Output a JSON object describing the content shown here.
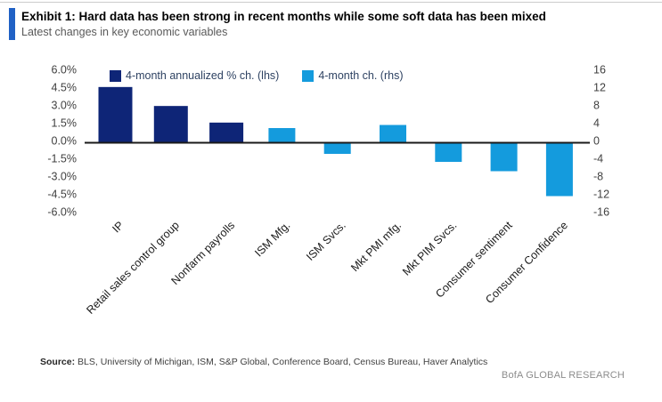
{
  "header": {
    "exhibit_title": "Exhibit 1: Hard data has been strong in recent months while some soft data has been mixed",
    "subtitle": "Latest changes in key economic variables"
  },
  "legend": [
    {
      "label": "4-month annualized % ch. (lhs)",
      "color": "#0e2577"
    },
    {
      "label": "4-month ch. (rhs)",
      "color": "#149bdd"
    }
  ],
  "chart_data": {
    "type": "bar",
    "title": "Exhibit 1: Hard data has been strong in recent months while some soft data has been mixed",
    "subtitle": "Latest changes in key economic variables",
    "legend_position": "top",
    "grid": false,
    "categories": [
      "IP",
      "Retail sales control group",
      "Nonfarm payrolls",
      "ISM Mfg.",
      "ISM Svcs.",
      "Mkt PMI mfg.",
      "Mkt PIM Svcs.",
      "Consumer sentiment",
      "Consumer Confidence"
    ],
    "series": [
      {
        "name": "4-month annualized % ch. (lhs)",
        "axis": "left",
        "color": "#0e2577",
        "values": [
          4.7,
          3.1,
          1.7,
          null,
          null,
          null,
          null,
          null,
          null
        ]
      },
      {
        "name": "4-month ch. (rhs)",
        "axis": "right",
        "color": "#149bdd",
        "values": [
          null,
          null,
          null,
          3.3,
          -2.5,
          4.0,
          -4.3,
          -6.4,
          -12.0
        ]
      }
    ],
    "left_axis": {
      "label": "4-month annualized % ch.",
      "min": -6,
      "max": 6,
      "ticks": [
        "6.0%",
        "4.5%",
        "3.0%",
        "1.5%",
        "0.0%",
        "-1.5%",
        "-3.0%",
        "-4.5%",
        "-6.0%"
      ]
    },
    "right_axis": {
      "label": "4-month ch.",
      "min": -16,
      "max": 16,
      "ticks": [
        "16",
        "12",
        "8",
        "4",
        "0",
        "-4",
        "-8",
        "-12",
        "-16"
      ]
    },
    "axis_line_color": "#1a1a1a",
    "tick_text_color": "#404040",
    "category_text_color": "#1a1a1a"
  },
  "footer": {
    "source_label": "Source:",
    "source_text": " BLS, University of Michigan, ISM, S&P Global, Conference Board, Census Bureau, Haver Analytics",
    "brand": "BofA GLOBAL RESEARCH"
  }
}
